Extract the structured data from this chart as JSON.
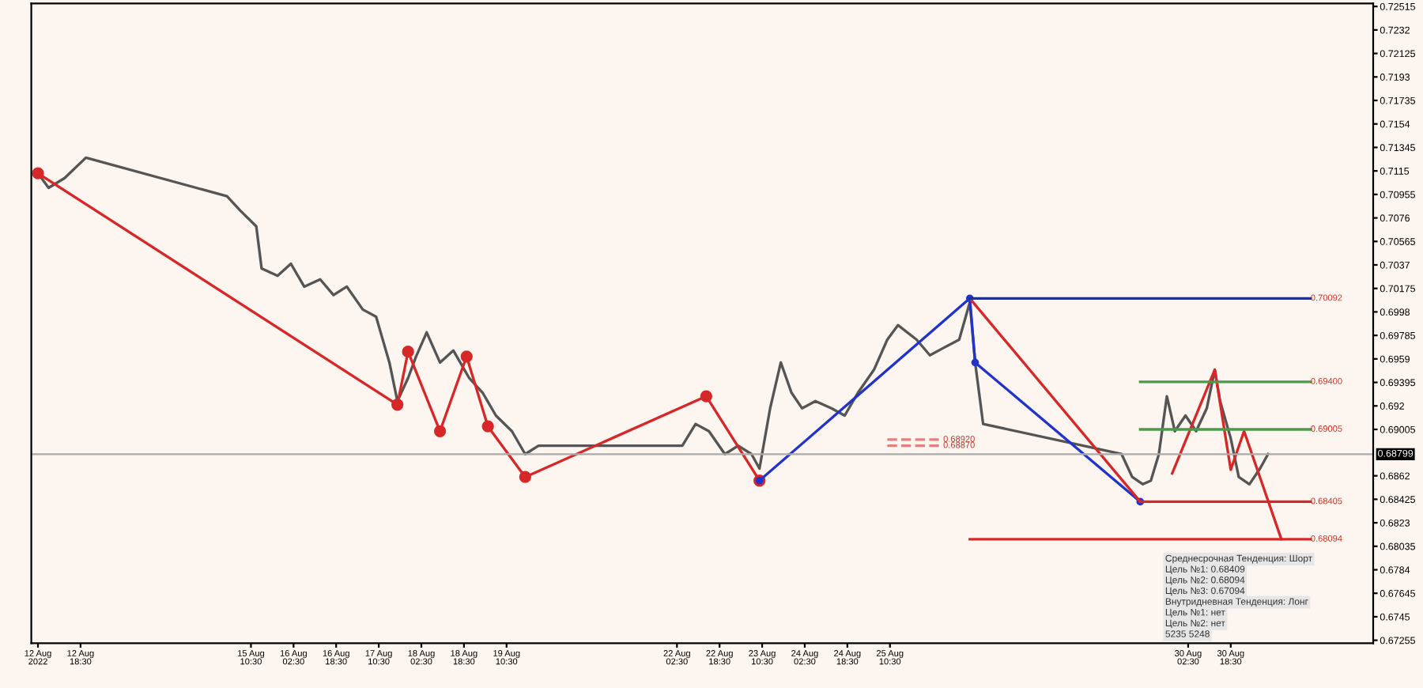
{
  "chart_data": {
    "type": "line",
    "xlim": [
      "2022-08-12T00:00",
      "2022-09-02T00:00"
    ],
    "ylim": [
      0.6723,
      0.7254
    ],
    "xticks": [
      {
        "value": "2022-08-12T02:30",
        "label": "12 Aug 2022"
      },
      {
        "value": "2022-08-12T18:30",
        "label": "12 Aug 18:30"
      },
      {
        "value": "2022-08-15T10:30",
        "label": "15 Aug 10:30"
      },
      {
        "value": "2022-08-16T02:30",
        "label": "16 Aug 02:30"
      },
      {
        "value": "2022-08-16T18:30",
        "label": "16 Aug 18:30"
      },
      {
        "value": "2022-08-17T10:30",
        "label": "17 Aug 10:30"
      },
      {
        "value": "2022-08-18T02:30",
        "label": "18 Aug 02:30"
      },
      {
        "value": "2022-08-18T18:30",
        "label": "18 Aug 18:30"
      },
      {
        "value": "2022-08-19T10:30",
        "label": "19 Aug 10:30"
      },
      {
        "value": "2022-08-22T02:30",
        "label": "22 Aug 02:30"
      },
      {
        "value": "2022-08-22T18:30",
        "label": "22 Aug 18:30"
      },
      {
        "value": "2022-08-23T10:30",
        "label": "23 Aug 10:30"
      },
      {
        "value": "2022-08-24T02:30",
        "label": "24 Aug 02:30"
      },
      {
        "value": "2022-08-24T18:30",
        "label": "24 Aug 18:30"
      },
      {
        "value": "2022-08-25T10:30",
        "label": "25 Aug 10:30"
      },
      {
        "value": "2022-08-30T02:30",
        "label": "30 Aug 02:30"
      },
      {
        "value": "2022-08-30T18:30",
        "label": "30 Aug 18:30"
      }
    ],
    "yticks": [
      0.72515,
      0.7232,
      0.72125,
      0.7193,
      0.71735,
      0.7154,
      0.71345,
      0.7115,
      0.70955,
      0.7076,
      0.70565,
      0.7037,
      0.70175,
      0.6998,
      0.69785,
      0.6959,
      0.69395,
      0.692,
      0.69005,
      0.6862,
      0.68425,
      0.6823,
      0.68035,
      0.6784,
      0.67645,
      0.6745,
      0.67255
    ],
    "series": [
      {
        "color": "#555555",
        "x": [
          "2022-08-12T02:30",
          "2022-08-12T06:30",
          "2022-08-12T12:30",
          "2022-08-12T20:30",
          "2022-08-15T01:30",
          "2022-08-15T06:30",
          "2022-08-15T12:30",
          "2022-08-15T14:30",
          "2022-08-15T20:30",
          "2022-08-16T01:30",
          "2022-08-16T06:30",
          "2022-08-16T12:30",
          "2022-08-16T17:30",
          "2022-08-16T22:30",
          "2022-08-17T04:30",
          "2022-08-17T09:30",
          "2022-08-17T14:30",
          "2022-08-17T17:30",
          "2022-08-17T21:30",
          "2022-08-18T00:30",
          "2022-08-18T04:30",
          "2022-08-18T09:30",
          "2022-08-18T14:30",
          "2022-08-18T20:30",
          "2022-08-19T01:30",
          "2022-08-19T06:30",
          "2022-08-19T12:30",
          "2022-08-19T17:30",
          "2022-08-19T22:30",
          "2022-08-22T04:30",
          "2022-08-22T09:30",
          "2022-08-22T14:30",
          "2022-08-22T20:30",
          "2022-08-23T01:30",
          "2022-08-23T06:30",
          "2022-08-23T09:30",
          "2022-08-23T13:30",
          "2022-08-23T17:30",
          "2022-08-23T21:30",
          "2022-08-24T01:30",
          "2022-08-24T06:30",
          "2022-08-24T12:30",
          "2022-08-24T17:30",
          "2022-08-24T22:30",
          "2022-08-25T04:30",
          "2022-08-25T09:30",
          "2022-08-25T13:30",
          "2022-08-25T20:30",
          "2022-08-26T01:30",
          "2022-08-26T06:30",
          "2022-08-26T12:30",
          "2022-08-26T16:30",
          "2022-08-26T18:30",
          "2022-08-26T21:30",
          "2022-08-29T01:30",
          "2022-08-29T05:30",
          "2022-08-29T09:30",
          "2022-08-29T12:30",
          "2022-08-29T15:30",
          "2022-08-29T18:30",
          "2022-08-29T21:30",
          "2022-08-30T01:30",
          "2022-08-30T05:30",
          "2022-08-30T09:30",
          "2022-08-30T12:30",
          "2022-08-30T14:30",
          "2022-08-30T18:30",
          "2022-08-30T21:30",
          "2022-08-31T01:30",
          "2022-08-31T05:30",
          "2022-08-31T08:30"
        ],
        "values": [
          0.7113,
          0.7101,
          0.7109,
          0.7126,
          0.7094,
          0.7082,
          0.7069,
          0.7034,
          0.7028,
          0.7038,
          0.7019,
          0.7025,
          0.7012,
          0.7019,
          0.7,
          0.6994,
          0.6956,
          0.6924,
          0.6943,
          0.6961,
          0.6981,
          0.6956,
          0.6966,
          0.6943,
          0.6931,
          0.6912,
          0.6899,
          0.688,
          0.6887,
          0.6887,
          0.6905,
          0.6899,
          0.688,
          0.6887,
          0.688,
          0.6868,
          0.6918,
          0.6956,
          0.6931,
          0.6918,
          0.6924,
          0.6918,
          0.6912,
          0.6931,
          0.695,
          0.6975,
          0.6987,
          0.6975,
          0.6962,
          0.6968,
          0.6975,
          0.7006,
          0.6956,
          0.6905,
          0.688,
          0.6861,
          0.6855,
          0.6858,
          0.688,
          0.6928,
          0.6899,
          0.6912,
          0.6899,
          0.6918,
          0.695,
          0.6924,
          0.6893,
          0.6861,
          0.6855,
          0.6868,
          0.688
        ]
      },
      {
        "color": "#d62828",
        "marker": "circle",
        "x": [
          "2022-08-12T02:30",
          "2022-08-17T17:30",
          "2022-08-17T21:30",
          "2022-08-18T09:30",
          "2022-08-18T19:30",
          "2022-08-19T03:30",
          "2022-08-19T17:30",
          "2022-08-22T13:30",
          "2022-08-23T09:30"
        ],
        "values": [
          0.7113,
          0.6921,
          0.6965,
          0.6899,
          0.6961,
          0.6903,
          0.6861,
          0.6928,
          0.6858
        ]
      },
      {
        "color": "#2233cc",
        "marker": "circle",
        "x": [
          "2022-08-23T09:30",
          "2022-08-26T16:30",
          "2022-08-26T18:30",
          "2022-08-29T08:30"
        ],
        "values": [
          0.6858,
          0.70092,
          0.6956,
          0.68405
        ]
      },
      {
        "color": "#d62828",
        "x": [
          "2022-08-26T16:30",
          "2022-08-29T08:30"
        ],
        "values": [
          0.70092,
          0.68405
        ]
      },
      {
        "color": "#d62828",
        "x": [
          "2022-08-29T20:30",
          "2022-08-30T12:30",
          "2022-08-30T18:30",
          "2022-08-30T23:30",
          "2022-08-31T13:30"
        ],
        "values": [
          0.6864,
          0.695,
          0.6867,
          0.6899,
          0.68094
        ]
      },
      {
        "color": "#1f2f8f",
        "x": [
          "2022-08-26T16:30",
          "2022-09-01T00:30"
        ],
        "values": [
          0.70092,
          0.70092
        ]
      },
      {
        "color": "#4a9a4a",
        "x": [
          "2022-08-29T08:30",
          "2022-09-01T00:30"
        ],
        "values": [
          0.694,
          0.694
        ]
      },
      {
        "color": "#4a9a4a",
        "x": [
          "2022-08-29T08:30",
          "2022-09-01T00:30"
        ],
        "values": [
          0.69005,
          0.69005
        ]
      },
      {
        "color": "#d62828",
        "x": [
          "2022-08-29T08:30",
          "2022-09-01T00:30"
        ],
        "values": [
          0.68405,
          0.68405
        ]
      },
      {
        "color": "#d62828",
        "x": [
          "2022-08-26T16:30",
          "2022-09-01T00:30"
        ],
        "values": [
          0.68094,
          0.68094
        ]
      },
      {
        "color": "#e08080",
        "line_style": "dashed",
        "x": [
          "2022-08-25T09:30",
          "2022-08-26T06:30"
        ],
        "values": [
          0.6892,
          0.6892
        ]
      },
      {
        "color": "#e08080",
        "line_style": "dashed",
        "x": [
          "2022-08-25T09:30",
          "2022-08-26T06:30"
        ],
        "values": [
          0.6887,
          0.6887
        ]
      }
    ],
    "ref_lines": [
      {
        "axis": "y",
        "value": 0.68799,
        "label": "0.68799",
        "color": "#aaaaaa"
      }
    ],
    "annotations": [
      {
        "text": "0.70092",
        "x": "2022-09-01T00:30",
        "y": 0.70092
      },
      {
        "text": "0.69400",
        "x": "2022-09-01T00:30",
        "y": 0.694
      },
      {
        "text": "0.69005",
        "x": "2022-09-01T00:30",
        "y": 0.69005
      },
      {
        "text": "0.68405",
        "x": "2022-09-01T00:30",
        "y": 0.68405
      },
      {
        "text": "0.68094",
        "x": "2022-09-01T00:30",
        "y": 0.68094
      },
      {
        "text": "0.68920",
        "x": "2022-08-26T06:30",
        "y": 0.6892
      },
      {
        "text": "0.68870",
        "x": "2022-08-26T06:30",
        "y": 0.6887
      },
      "Среднесрочная Тенденция: Шорт",
      "Цель №1: 0.68409",
      "Цель №2: 0.68094",
      "Цель №3: 0.67094",
      "Внутридневная Тенденция: Лонг",
      "Цель №1: нет",
      "Цель №2: нет",
      "5235 5248"
    ]
  }
}
